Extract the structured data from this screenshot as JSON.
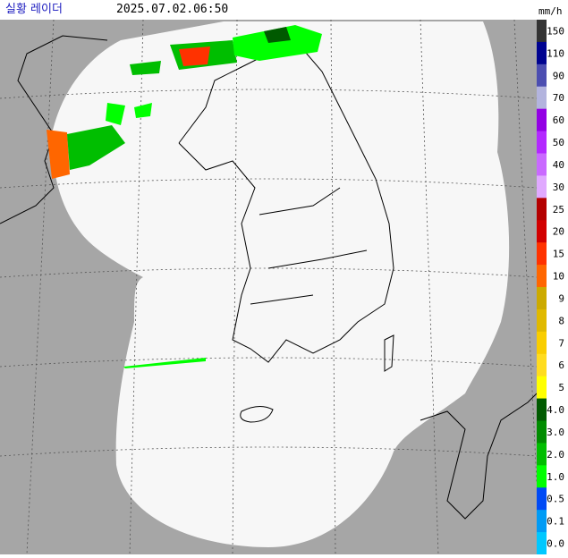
{
  "header": {
    "title": "실황 레이더",
    "timestamp": "2025.07.02.06:50",
    "unit": "mm/h"
  },
  "legend": {
    "items": [
      {
        "label": "150",
        "color": "#333333"
      },
      {
        "label": "110",
        "color": "#000390"
      },
      {
        "label": "90",
        "color": "#4c4eb1"
      },
      {
        "label": "70",
        "color": "#b3b4de"
      },
      {
        "label": "60",
        "color": "#9300e4"
      },
      {
        "label": "50",
        "color": "#b329ff"
      },
      {
        "label": "40",
        "color": "#c969ff"
      },
      {
        "label": "30",
        "color": "#e0a9ff"
      },
      {
        "label": "25",
        "color": "#b40000"
      },
      {
        "label": "20",
        "color": "#d20000"
      },
      {
        "label": "15",
        "color": "#ff3200"
      },
      {
        "label": "10",
        "color": "#ff6600"
      },
      {
        "label": "9",
        "color": "#ccaa00"
      },
      {
        "label": "8",
        "color": "#e0b900"
      },
      {
        "label": "7",
        "color": "#f9cd00"
      },
      {
        "label": "6",
        "color": "#ffdc1f"
      },
      {
        "label": "5",
        "color": "#ffff00"
      },
      {
        "label": "4.0",
        "color": "#005a00"
      },
      {
        "label": "3.0",
        "color": "#008c00"
      },
      {
        "label": "2.0",
        "color": "#00be00"
      },
      {
        "label": "1.0",
        "color": "#00ff00"
      },
      {
        "label": "0.5",
        "color": "#004af5"
      },
      {
        "label": "0.1",
        "color": "#009bf5"
      },
      {
        "label": "0.0",
        "color": "#00c8ff"
      }
    ]
  }
}
